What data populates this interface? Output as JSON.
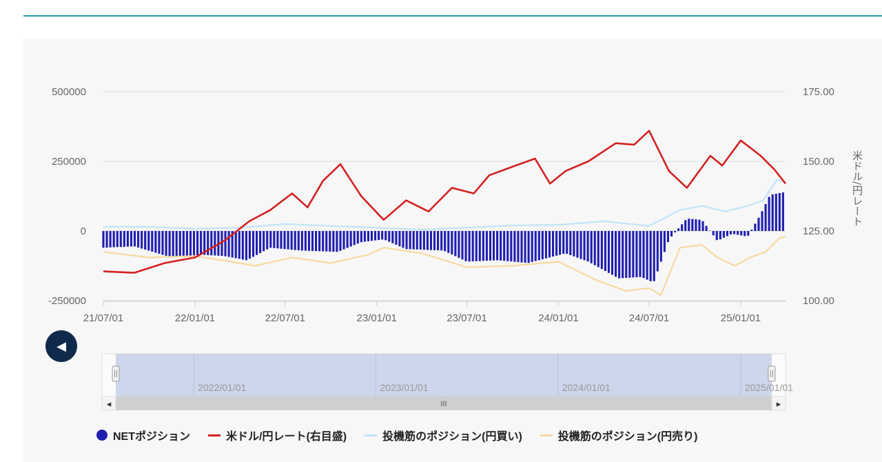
{
  "chart_data": {
    "type": "bar+line",
    "title": "",
    "ylabel_left": "",
    "ylabel_right": "米ドル/円レート",
    "left_axis": {
      "ylim": [
        -250000,
        500000
      ],
      "ticks": [
        "500000",
        "250000",
        "0",
        "-250000"
      ]
    },
    "right_axis": {
      "ylim": [
        100,
        175
      ],
      "ticks": [
        "175.00",
        "150.00",
        "125.00",
        "100.00"
      ]
    },
    "x_ticks": [
      "21/07/01",
      "22/01/01",
      "22/07/01",
      "23/01/01",
      "23/07/01",
      "24/01/01",
      "24/07/01",
      "25/01/01"
    ],
    "x_range": [
      "2021-07-01",
      "2025-04-01"
    ],
    "grid": true,
    "legend_position": "bottom",
    "series": [
      {
        "name": "NETポジション",
        "kind": "bar",
        "axis": "left",
        "color": "#1f1fb0",
        "points": [
          [
            "2021-07-01",
            -60000
          ],
          [
            "2021-09-01",
            -55000
          ],
          [
            "2021-11-15",
            -95000
          ],
          [
            "2022-01-15",
            -85000
          ],
          [
            "2022-03-01",
            -90000
          ],
          [
            "2022-04-15",
            -105000
          ],
          [
            "2022-06-01",
            -60000
          ],
          [
            "2022-08-01",
            -70000
          ],
          [
            "2022-10-15",
            -75000
          ],
          [
            "2022-12-01",
            -40000
          ],
          [
            "2023-01-15",
            -30000
          ],
          [
            "2023-03-01",
            -65000
          ],
          [
            "2023-05-15",
            -70000
          ],
          [
            "2023-07-01",
            -110000
          ],
          [
            "2023-09-01",
            -105000
          ],
          [
            "2023-11-01",
            -115000
          ],
          [
            "2024-01-15",
            -80000
          ],
          [
            "2024-03-01",
            -110000
          ],
          [
            "2024-05-01",
            -170000
          ],
          [
            "2024-06-15",
            -165000
          ],
          [
            "2024-07-10",
            -185000
          ],
          [
            "2024-08-10",
            -30000
          ],
          [
            "2024-09-15",
            45000
          ],
          [
            "2024-10-15",
            40000
          ],
          [
            "2024-11-15",
            -35000
          ],
          [
            "2024-12-15",
            -10000
          ],
          [
            "2025-01-15",
            -20000
          ],
          [
            "2025-02-10",
            60000
          ],
          [
            "2025-03-01",
            130000
          ],
          [
            "2025-04-01",
            140000
          ]
        ]
      },
      {
        "name": "米ドル/円レート(右目盛)",
        "kind": "line",
        "axis": "right",
        "color": "#d42020",
        "points": [
          [
            "2021-07-01",
            110.5
          ],
          [
            "2021-09-01",
            110.0
          ],
          [
            "2021-11-01",
            113.5
          ],
          [
            "2022-01-01",
            115.5
          ],
          [
            "2022-03-01",
            121.5
          ],
          [
            "2022-04-20",
            128.5
          ],
          [
            "2022-06-01",
            132.5
          ],
          [
            "2022-07-15",
            138.5
          ],
          [
            "2022-08-15",
            133.5
          ],
          [
            "2022-09-15",
            143.0
          ],
          [
            "2022-10-20",
            149.0
          ],
          [
            "2022-12-01",
            137.5
          ],
          [
            "2023-01-15",
            129.0
          ],
          [
            "2023-03-01",
            136.0
          ],
          [
            "2023-04-15",
            132.0
          ],
          [
            "2023-06-01",
            140.5
          ],
          [
            "2023-07-15",
            138.5
          ],
          [
            "2023-08-15",
            145.0
          ],
          [
            "2023-10-15",
            149.0
          ],
          [
            "2023-11-15",
            151.0
          ],
          [
            "2023-12-15",
            142.0
          ],
          [
            "2024-01-15",
            146.5
          ],
          [
            "2024-03-01",
            150.0
          ],
          [
            "2024-04-25",
            156.5
          ],
          [
            "2024-06-01",
            156.0
          ],
          [
            "2024-07-01",
            161.0
          ],
          [
            "2024-08-10",
            146.5
          ],
          [
            "2024-09-15",
            140.5
          ],
          [
            "2024-11-01",
            152.0
          ],
          [
            "2024-11-25",
            148.5
          ],
          [
            "2025-01-01",
            157.5
          ],
          [
            "2025-02-10",
            152.0
          ],
          [
            "2025-03-10",
            147.0
          ],
          [
            "2025-04-01",
            142.0
          ]
        ]
      },
      {
        "name": "投機筋のポジション(円買い)",
        "kind": "line",
        "axis": "left",
        "color": "#bfe4f7",
        "points": [
          [
            "2021-07-01",
            15000
          ],
          [
            "2021-10-01",
            15000
          ],
          [
            "2022-01-01",
            8000
          ],
          [
            "2022-04-01",
            12000
          ],
          [
            "2022-07-01",
            25000
          ],
          [
            "2022-10-01",
            18000
          ],
          [
            "2023-01-01",
            12000
          ],
          [
            "2023-04-01",
            5000
          ],
          [
            "2023-07-01",
            12000
          ],
          [
            "2023-10-01",
            20000
          ],
          [
            "2024-01-01",
            22000
          ],
          [
            "2024-04-01",
            35000
          ],
          [
            "2024-07-01",
            18000
          ],
          [
            "2024-09-01",
            75000
          ],
          [
            "2024-10-15",
            90000
          ],
          [
            "2024-12-01",
            70000
          ],
          [
            "2025-01-15",
            90000
          ],
          [
            "2025-02-15",
            110000
          ],
          [
            "2025-03-15",
            185000
          ],
          [
            "2025-04-01",
            175000
          ]
        ]
      },
      {
        "name": "投機筋のポジション(円売り)",
        "kind": "line",
        "axis": "left",
        "color": "#f6d9a0",
        "points": [
          [
            "2021-07-01",
            -75000
          ],
          [
            "2021-10-01",
            -95000
          ],
          [
            "2022-01-01",
            -90000
          ],
          [
            "2022-03-15",
            -110000
          ],
          [
            "2022-05-01",
            -125000
          ],
          [
            "2022-07-15",
            -95000
          ],
          [
            "2022-10-01",
            -115000
          ],
          [
            "2022-12-15",
            -85000
          ],
          [
            "2023-01-15",
            -60000
          ],
          [
            "2023-04-01",
            -80000
          ],
          [
            "2023-07-01",
            -130000
          ],
          [
            "2023-10-01",
            -125000
          ],
          [
            "2024-01-01",
            -110000
          ],
          [
            "2024-03-15",
            -175000
          ],
          [
            "2024-05-15",
            -215000
          ],
          [
            "2024-07-01",
            -205000
          ],
          [
            "2024-07-25",
            -230000
          ],
          [
            "2024-09-01",
            -60000
          ],
          [
            "2024-10-15",
            -50000
          ],
          [
            "2024-11-15",
            -95000
          ],
          [
            "2024-12-20",
            -125000
          ],
          [
            "2025-01-20",
            -95000
          ],
          [
            "2025-02-20",
            -75000
          ],
          [
            "2025-03-20",
            -25000
          ],
          [
            "2025-04-01",
            -20000
          ]
        ]
      }
    ]
  },
  "navigator": {
    "labels": [
      "2022/01/01",
      "2023/01/01",
      "2024/01/01",
      "2025/01/01"
    ],
    "scroll_left_icon": "◂",
    "scroll_right_icon": "▸",
    "grip_icon": "III"
  },
  "nav_button": {
    "icon": "◀"
  },
  "legend": [
    {
      "label": "NETポジション",
      "color": "#1f1fb0",
      "kind": "dot"
    },
    {
      "label": "米ドル/円レート(右目盛)",
      "color": "#d42020",
      "kind": "line"
    },
    {
      "label": "投機筋のポジション(円買い)",
      "color": "#bfe4f7",
      "kind": "line"
    },
    {
      "label": "投機筋のポジション(円売り)",
      "color": "#f6d9a0",
      "kind": "line"
    }
  ]
}
